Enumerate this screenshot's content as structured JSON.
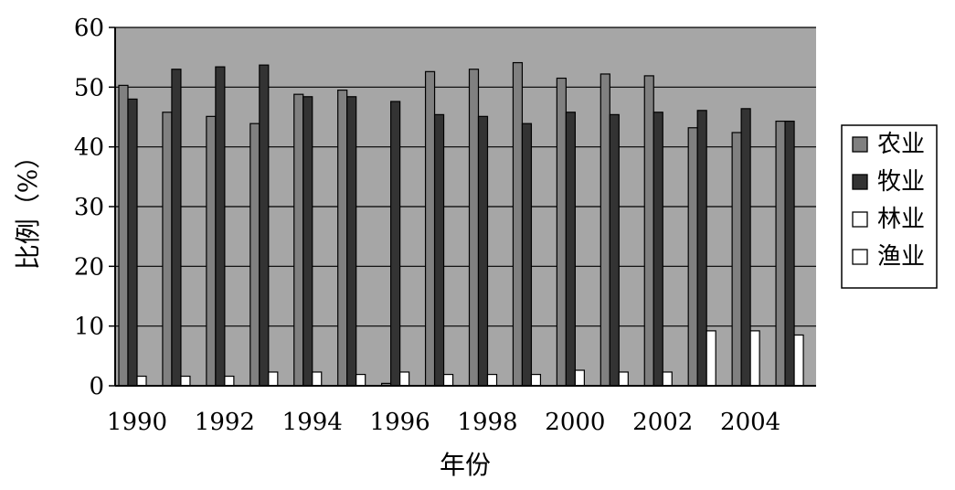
{
  "chart_data": {
    "type": "bar",
    "title": "",
    "xlabel": "年份",
    "ylabel": "比例（%）",
    "ylim": [
      0,
      60
    ],
    "yticks": [
      0,
      10,
      20,
      30,
      40,
      50,
      60
    ],
    "grid": "horizontal major gridlines",
    "legend_position": "right",
    "categories": [
      "1990",
      "1991",
      "1992",
      "1993",
      "1994",
      "1995",
      "1996",
      "1997",
      "1998",
      "1999",
      "2000",
      "2001",
      "2002",
      "2003",
      "2004",
      "2005"
    ],
    "xtick_labels": [
      "1990",
      "1992",
      "1994",
      "1996",
      "1998",
      "2000",
      "2002",
      "2004"
    ],
    "series": [
      {
        "name": "农业",
        "color": "#808080",
        "values": [
          50.3,
          45.8,
          45.1,
          43.9,
          48.8,
          49.5,
          0.4,
          52.6,
          53.0,
          54.1,
          51.5,
          52.2,
          51.9,
          43.2,
          42.4,
          44.3
        ]
      },
      {
        "name": "牧业",
        "color": "#333333",
        "values": [
          48.0,
          53.0,
          53.4,
          53.7,
          48.4,
          48.4,
          47.6,
          45.4,
          45.1,
          43.9,
          45.8,
          45.4,
          45.8,
          46.1,
          46.4,
          44.3
        ]
      },
      {
        "name": "林业",
        "color": "#ffffff",
        "values": [
          0,
          0,
          0,
          0,
          0,
          0,
          0,
          0,
          0,
          0,
          0,
          0,
          0,
          0,
          0,
          0
        ]
      },
      {
        "name": "渔业",
        "color": "#ffffff",
        "values": [
          1.6,
          1.6,
          1.6,
          2.3,
          2.3,
          1.9,
          2.3,
          1.9,
          1.9,
          1.9,
          2.6,
          2.3,
          2.3,
          9.2,
          9.2,
          8.5
        ]
      }
    ],
    "plot_background": "#a6a6a6"
  }
}
